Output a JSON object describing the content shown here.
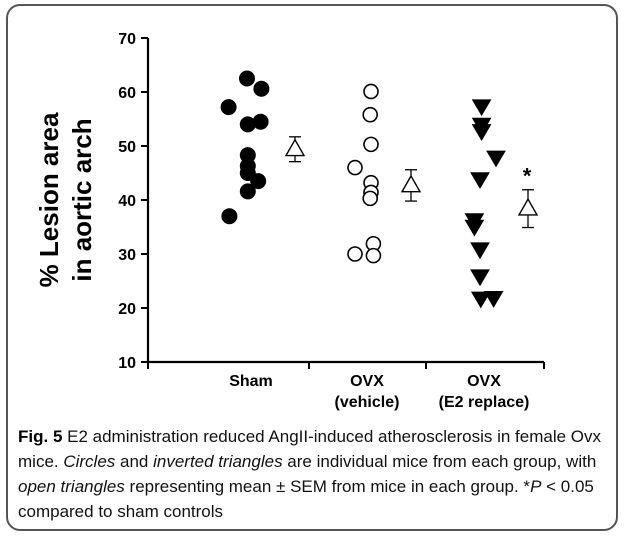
{
  "chart_data": {
    "type": "scatter",
    "ylabel_line1": "% Lesion area",
    "ylabel_line2": "in aortic arch",
    "ylim": [
      10,
      70
    ],
    "yticks": [
      10,
      20,
      30,
      40,
      50,
      60,
      70
    ],
    "categories": [
      "Sham",
      "OVX\n(vehicle)",
      "OVX\n(E2 replace)"
    ],
    "groups": [
      {
        "marker": "filled-circle",
        "individual": [
          {
            "pos": -0.28,
            "value": 57.2
          },
          {
            "pos": -0.05,
            "value": 62.5
          },
          {
            "pos": 0.13,
            "value": 60.6
          },
          {
            "pos": -0.04,
            "value": 54.0
          },
          {
            "pos": 0.12,
            "value": 54.5
          },
          {
            "pos": -0.04,
            "value": 48.3
          },
          {
            "pos": -0.04,
            "value": 46.3
          },
          {
            "pos": -0.04,
            "value": 45.0
          },
          {
            "pos": 0.09,
            "value": 43.5
          },
          {
            "pos": -0.04,
            "value": 41.6
          },
          {
            "pos": -0.27,
            "value": 37.0
          }
        ],
        "mean": 49.4,
        "sem": 2.3
      },
      {
        "marker": "open-circle",
        "individual": [
          {
            "pos": 0.05,
            "value": 60.1
          },
          {
            "pos": 0.04,
            "value": 55.8
          },
          {
            "pos": 0.05,
            "value": 50.3
          },
          {
            "pos": -0.15,
            "value": 46.0
          },
          {
            "pos": 0.05,
            "value": 43.2
          },
          {
            "pos": 0.05,
            "value": 41.4
          },
          {
            "pos": 0.04,
            "value": 40.3
          },
          {
            "pos": -0.15,
            "value": 30.0
          },
          {
            "pos": 0.08,
            "value": 31.9
          },
          {
            "pos": 0.08,
            "value": 29.7
          }
        ],
        "mean": 42.7,
        "sem": 2.9
      },
      {
        "marker": "filled-inverted-triangle",
        "individual": [
          {
            "pos": -0.03,
            "value": 57.3
          },
          {
            "pos": -0.03,
            "value": 53.9
          },
          {
            "pos": -0.03,
            "value": 52.7
          },
          {
            "pos": 0.15,
            "value": 47.8
          },
          {
            "pos": -0.05,
            "value": 43.8
          },
          {
            "pos": -0.12,
            "value": 36.2
          },
          {
            "pos": -0.12,
            "value": 35.0
          },
          {
            "pos": -0.05,
            "value": 30.8
          },
          {
            "pos": -0.05,
            "value": 25.8
          },
          {
            "pos": -0.04,
            "value": 21.7
          },
          {
            "pos": 0.12,
            "value": 21.8
          }
        ],
        "mean": 38.4,
        "sem": 3.5
      }
    ],
    "significance_marker": "*",
    "significance_group": 2,
    "grid": false
  },
  "caption": {
    "label": "Fig. 5",
    "segments": [
      {
        "text": " E2 administration reduced AngII-induced atherosclerosis in female Ovx mice. ",
        "italic": false
      },
      {
        "text": "Circles",
        "italic": true
      },
      {
        "text": " and ",
        "italic": false
      },
      {
        "text": "inverted triangles",
        "italic": true
      },
      {
        "text": " are individual mice from each group, with ",
        "italic": false
      },
      {
        "text": "open triangles",
        "italic": true
      },
      {
        "text": " representing mean ± SEM from mice in each group. *",
        "italic": false
      },
      {
        "text": "P",
        "italic": true
      },
      {
        "text": " < 0.05 compared to sham controls",
        "italic": false
      }
    ]
  }
}
